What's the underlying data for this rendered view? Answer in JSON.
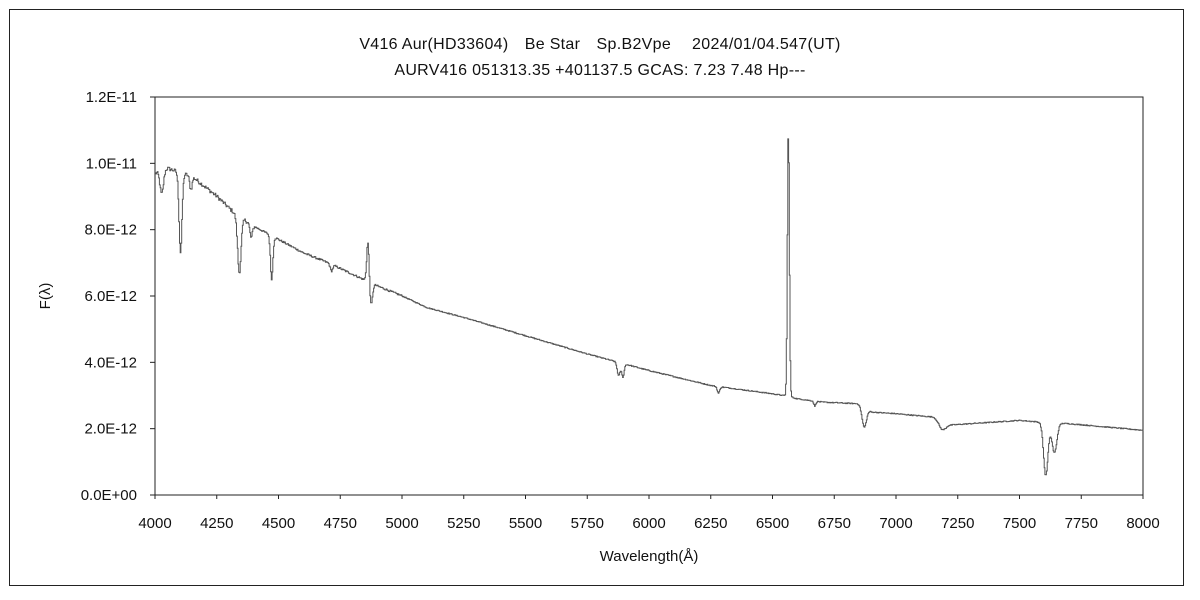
{
  "chart_data": {
    "type": "line",
    "title": "V416 Aur(HD33604)　Be Star　Sp.B2Vpe　 2024/01/04.547(UT)",
    "subtitle": "AURV416 051313.35 +401137.5 GCAS: 7.23 7.48 Hp---",
    "xlabel": "Wavelength(Å)",
    "ylabel": "F(λ)",
    "xlim": [
      4000,
      8000
    ],
    "ylim": [
      0,
      1.2e-11
    ],
    "grid": false,
    "legend": "none",
    "line_color": "#555555",
    "xticks": [
      4000,
      4250,
      4500,
      4750,
      5000,
      5250,
      5500,
      5750,
      6000,
      6250,
      6500,
      6750,
      7000,
      7250,
      7500,
      7750,
      8000
    ],
    "xtick_labels": [
      "4000",
      "4250",
      "4500",
      "4750",
      "5000",
      "5250",
      "5500",
      "5750",
      "6000",
      "6250",
      "6500",
      "6750",
      "7000",
      "7250",
      "7500",
      "7750",
      "8000"
    ],
    "yticks": [
      0,
      2e-12,
      4e-12,
      6e-12,
      8e-12,
      1e-11,
      1.2e-11
    ],
    "ytick_labels": [
      "0.0E+00",
      "2.0E-12",
      "4.0E-12",
      "6.0E-12",
      "8.0E-12",
      "1.0E-11",
      "1.2E-11"
    ],
    "continuum": [
      [
        4000,
        9.7e-12
      ],
      [
        4050,
        9.85e-12
      ],
      [
        4150,
        9.6e-12
      ],
      [
        4250,
        9e-12
      ],
      [
        4320,
        8.5e-12
      ],
      [
        4400,
        8.1e-12
      ],
      [
        4500,
        7.7e-12
      ],
      [
        4600,
        7.3e-12
      ],
      [
        4700,
        7e-12
      ],
      [
        4800,
        6.65e-12
      ],
      [
        4900,
        6.3e-12
      ],
      [
        5000,
        6e-12
      ],
      [
        5100,
        5.65e-12
      ],
      [
        5250,
        5.35e-12
      ],
      [
        5500,
        4.8e-12
      ],
      [
        5750,
        4.25e-12
      ],
      [
        6000,
        3.75e-12
      ],
      [
        6250,
        3.3e-12
      ],
      [
        6500,
        3.05e-12
      ],
      [
        6560,
        2.98e-12
      ],
      [
        6600,
        2.9e-12
      ],
      [
        6700,
        2.8e-12
      ],
      [
        6850,
        2.75e-12
      ],
      [
        6900,
        2.5e-12
      ],
      [
        7000,
        2.45e-12
      ],
      [
        7150,
        2.35e-12
      ],
      [
        7200,
        2.1e-12
      ],
      [
        7300,
        2.15e-12
      ],
      [
        7500,
        2.25e-12
      ],
      [
        7580,
        2.2e-12
      ],
      [
        7700,
        2.15e-12
      ],
      [
        7850,
        2.05e-12
      ],
      [
        8000,
        1.95e-12
      ]
    ],
    "features": [
      {
        "center": 4026,
        "depth": -7e-13,
        "width": 7
      },
      {
        "center": 4102,
        "depth": -2.4e-12,
        "width": 6
      },
      {
        "center": 4144,
        "depth": -4e-13,
        "width": 5
      },
      {
        "center": 4340,
        "depth": -1.7e-12,
        "width": 7
      },
      {
        "center": 4388,
        "depth": -4e-13,
        "width": 5
      },
      {
        "center": 4471,
        "depth": -1.3e-12,
        "width": 5
      },
      {
        "center": 4713,
        "depth": -2e-13,
        "width": 5
      },
      {
        "center": 4861,
        "depth": 1.25e-12,
        "width": 5
      },
      {
        "center": 4873,
        "depth": -7e-13,
        "width": 6
      },
      {
        "center": 5876,
        "depth": -4e-13,
        "width": 6
      },
      {
        "center": 5893,
        "depth": -4e-13,
        "width": 5
      },
      {
        "center": 6280,
        "depth": -2e-13,
        "width": 5
      },
      {
        "center": 6563,
        "depth": 8e-12,
        "width": 4
      },
      {
        "center": 6670,
        "depth": -1.5e-13,
        "width": 4
      },
      {
        "center": 6870,
        "depth": -6e-13,
        "width": 9
      },
      {
        "center": 7185,
        "depth": -2e-13,
        "width": 12
      },
      {
        "center": 7605,
        "depth": -1.6e-12,
        "width": 9
      },
      {
        "center": 7640,
        "depth": -9e-13,
        "width": 10
      }
    ]
  }
}
